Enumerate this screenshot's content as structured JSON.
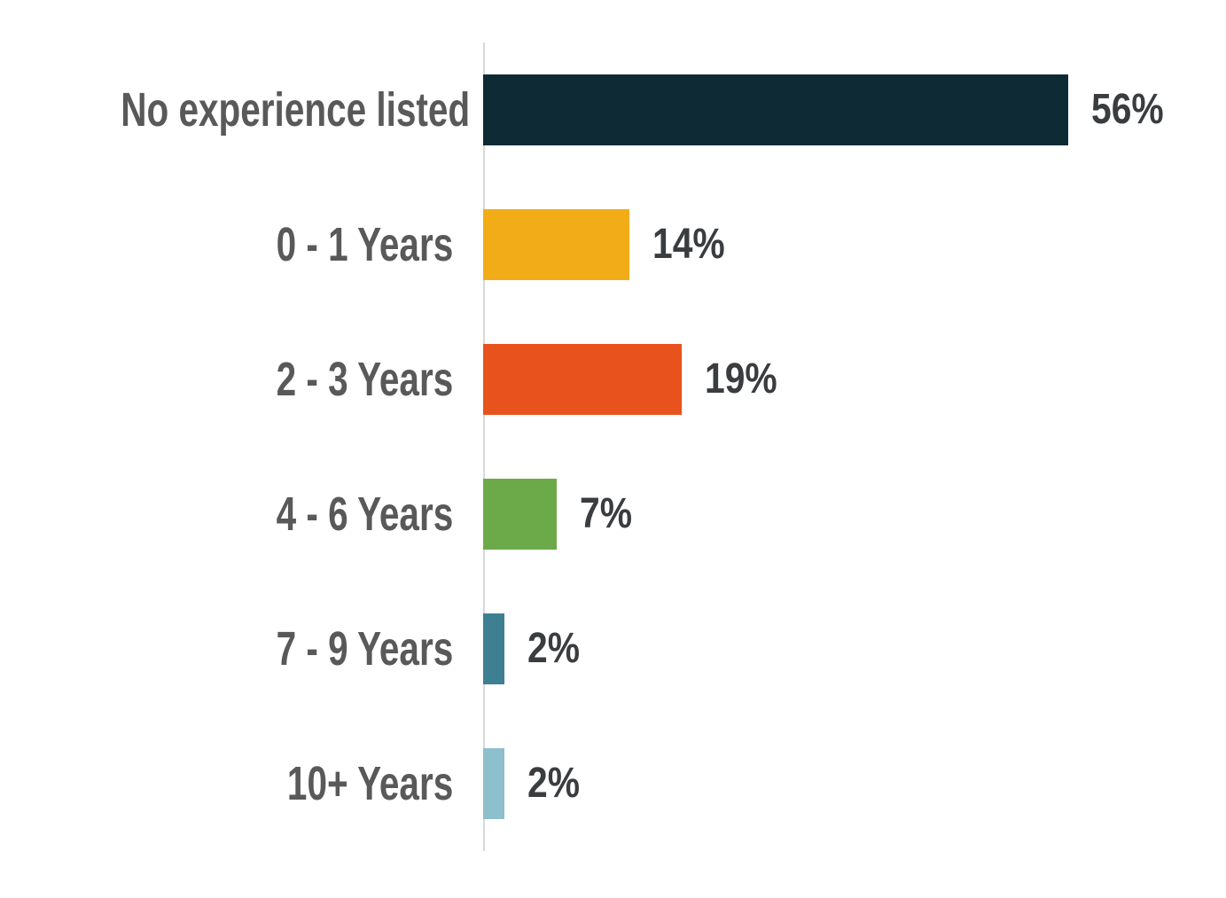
{
  "chart_data": {
    "type": "bar",
    "orientation": "horizontal",
    "title": "",
    "xlabel": "",
    "ylabel": "",
    "categories": [
      "No experience listed",
      "0 - 1 Years",
      "2 - 3 Years",
      "4 - 6 Years",
      "7 - 9 Years",
      "10+ Years"
    ],
    "values": [
      56,
      14,
      19,
      7,
      2,
      2
    ],
    "data_labels": [
      "56%",
      "14%",
      "19%",
      "7%",
      "2%",
      "2%"
    ],
    "colors": [
      "#0d2a35",
      "#f2ac18",
      "#e8521c",
      "#6caa49",
      "#3e8092",
      "#8dbfcd"
    ],
    "xlim": [
      0,
      56
    ],
    "grid": false,
    "legend": false,
    "axis_line_color": "#d9d9d9",
    "category_label_color": "#595959",
    "value_label_color": "#3a3d40",
    "background_color": "#ffffff"
  }
}
